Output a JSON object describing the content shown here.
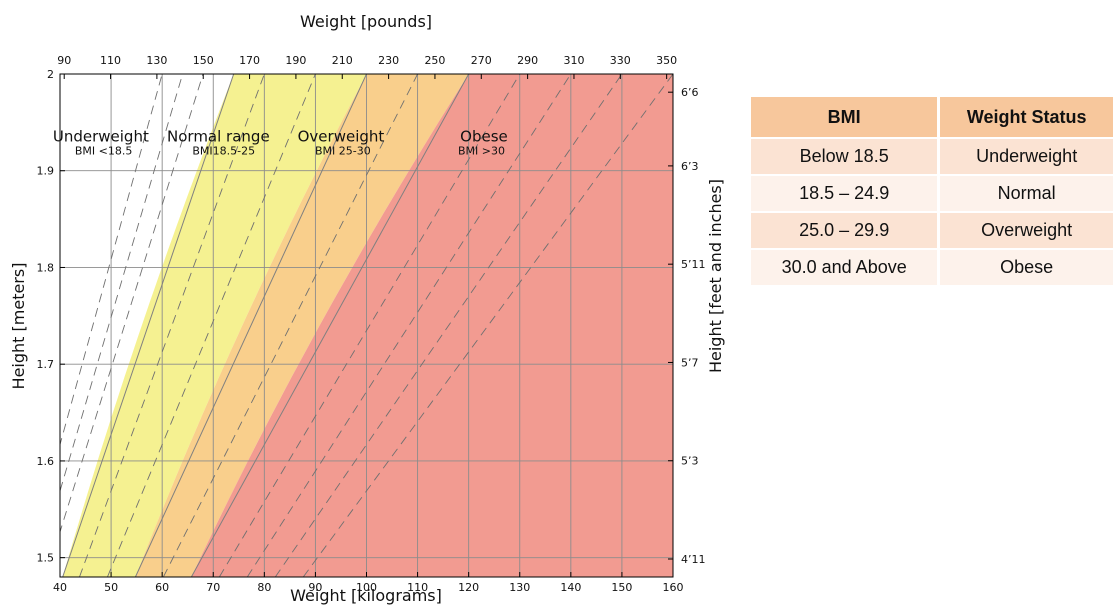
{
  "chart_data": {
    "type": "area",
    "xlabel": "Weight [kilograms]",
    "x2label": "Weight [pounds]",
    "ylabel": "Height [meters]",
    "y2label": "Height [feet and inches]",
    "xlim": [
      40,
      160
    ],
    "ylim": [
      1.48,
      2.0
    ],
    "x_ticks": [
      40,
      50,
      60,
      70,
      80,
      90,
      100,
      110,
      120,
      130,
      140,
      150,
      160
    ],
    "y_ticks": [
      1.5,
      1.6,
      1.7,
      1.8,
      1.9,
      2.0
    ],
    "y_tick_labels": [
      "1.5",
      "1.6",
      "1.7",
      "1.8",
      "1.9",
      "2"
    ],
    "x2_ticks": [
      90,
      110,
      130,
      150,
      170,
      190,
      210,
      230,
      250,
      270,
      290,
      310,
      330,
      350
    ],
    "y2_ticks": [
      {
        "label": "4’11",
        "inches": 59
      },
      {
        "label": "5’3",
        "inches": 63
      },
      {
        "label": "5’7",
        "inches": 67
      },
      {
        "label": "5’11",
        "inches": 71
      },
      {
        "label": "6’3",
        "inches": 75
      },
      {
        "label": "6’6",
        "inches": 78
      }
    ],
    "grid": true,
    "boundaries": [
      18.5,
      25,
      30
    ],
    "dashed_bmi_lines": [
      15,
      16,
      17,
      20,
      22.5,
      27.5,
      32.5,
      35,
      37.5,
      40
    ],
    "zones": [
      {
        "name": "Underweight",
        "label": "BMI <18.5",
        "bmi_min": 0,
        "bmi_max": 18.5,
        "color": "#ffffff"
      },
      {
        "name": "Normal range",
        "label": "BMI18.5-25",
        "bmi_min": 18.5,
        "bmi_max": 25,
        "color": "#f5f191"
      },
      {
        "name": "Overweight",
        "label": "BMI 25-30",
        "bmi_min": 25,
        "bmi_max": 30,
        "color": "#f9cf8c"
      },
      {
        "name": "Obese",
        "label": "BMI >30",
        "bmi_min": 30,
        "bmi_max": 100,
        "color": "#f29b91"
      }
    ]
  },
  "table": {
    "headers": [
      "BMI",
      "Weight Status"
    ],
    "rows": [
      [
        "Below 18.5",
        "Underweight"
      ],
      [
        "18.5 – 24.9",
        "Normal"
      ],
      [
        "25.0 – 29.9",
        "Overweight"
      ],
      [
        "30.0 and Above",
        "Obese"
      ]
    ]
  }
}
